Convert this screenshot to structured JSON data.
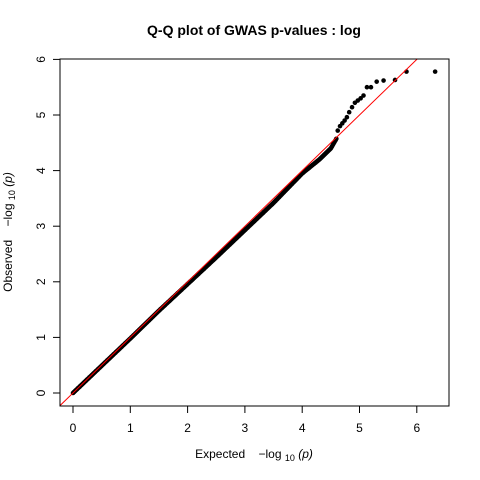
{
  "chart_data": {
    "type": "scatter",
    "title": "Q-Q plot of GWAS p-values : log",
    "xlabel": {
      "prefix": "Expected",
      "log": "−log",
      "sub": "10",
      "var": "(p)"
    },
    "ylabel": {
      "prefix": "Observed",
      "log": "−log",
      "sub": "10",
      "var": "(p)"
    },
    "xlim": [
      0,
      6.3
    ],
    "ylim": [
      0,
      6
    ],
    "x_ticks": [
      0,
      1,
      2,
      3,
      4,
      5,
      6
    ],
    "y_ticks": [
      0,
      1,
      2,
      3,
      4,
      5,
      6
    ],
    "x_tick_labels": [
      "0",
      "1",
      "2",
      "3",
      "4",
      "5",
      "6"
    ],
    "y_tick_labels": [
      "0",
      "1",
      "2",
      "3",
      "4",
      "5",
      "6"
    ],
    "grid": false,
    "reference_line": {
      "slope": 1,
      "intercept": 0,
      "color": "#ff0000"
    },
    "point_color": "#000000",
    "main_trend": {
      "x": [
        0,
        0.5,
        1,
        1.5,
        2,
        2.5,
        3,
        3.5,
        4,
        4.3,
        4.5,
        4.6
      ],
      "y": [
        0,
        0.49,
        0.98,
        1.48,
        1.96,
        2.44,
        2.93,
        3.42,
        3.95,
        4.2,
        4.4,
        4.58
      ]
    },
    "tail_points": {
      "x": [
        4.62,
        4.66,
        4.7,
        4.74,
        4.78,
        4.82,
        4.87,
        4.92,
        4.97,
        5.02,
        5.07,
        5.13,
        5.2,
        5.3,
        5.42,
        5.62,
        5.82,
        6.32
      ],
      "y": [
        4.72,
        4.8,
        4.85,
        4.9,
        4.96,
        5.05,
        5.14,
        5.22,
        5.26,
        5.3,
        5.35,
        5.5,
        5.5,
        5.6,
        5.62,
        5.63,
        5.78,
        5.78
      ]
    }
  }
}
